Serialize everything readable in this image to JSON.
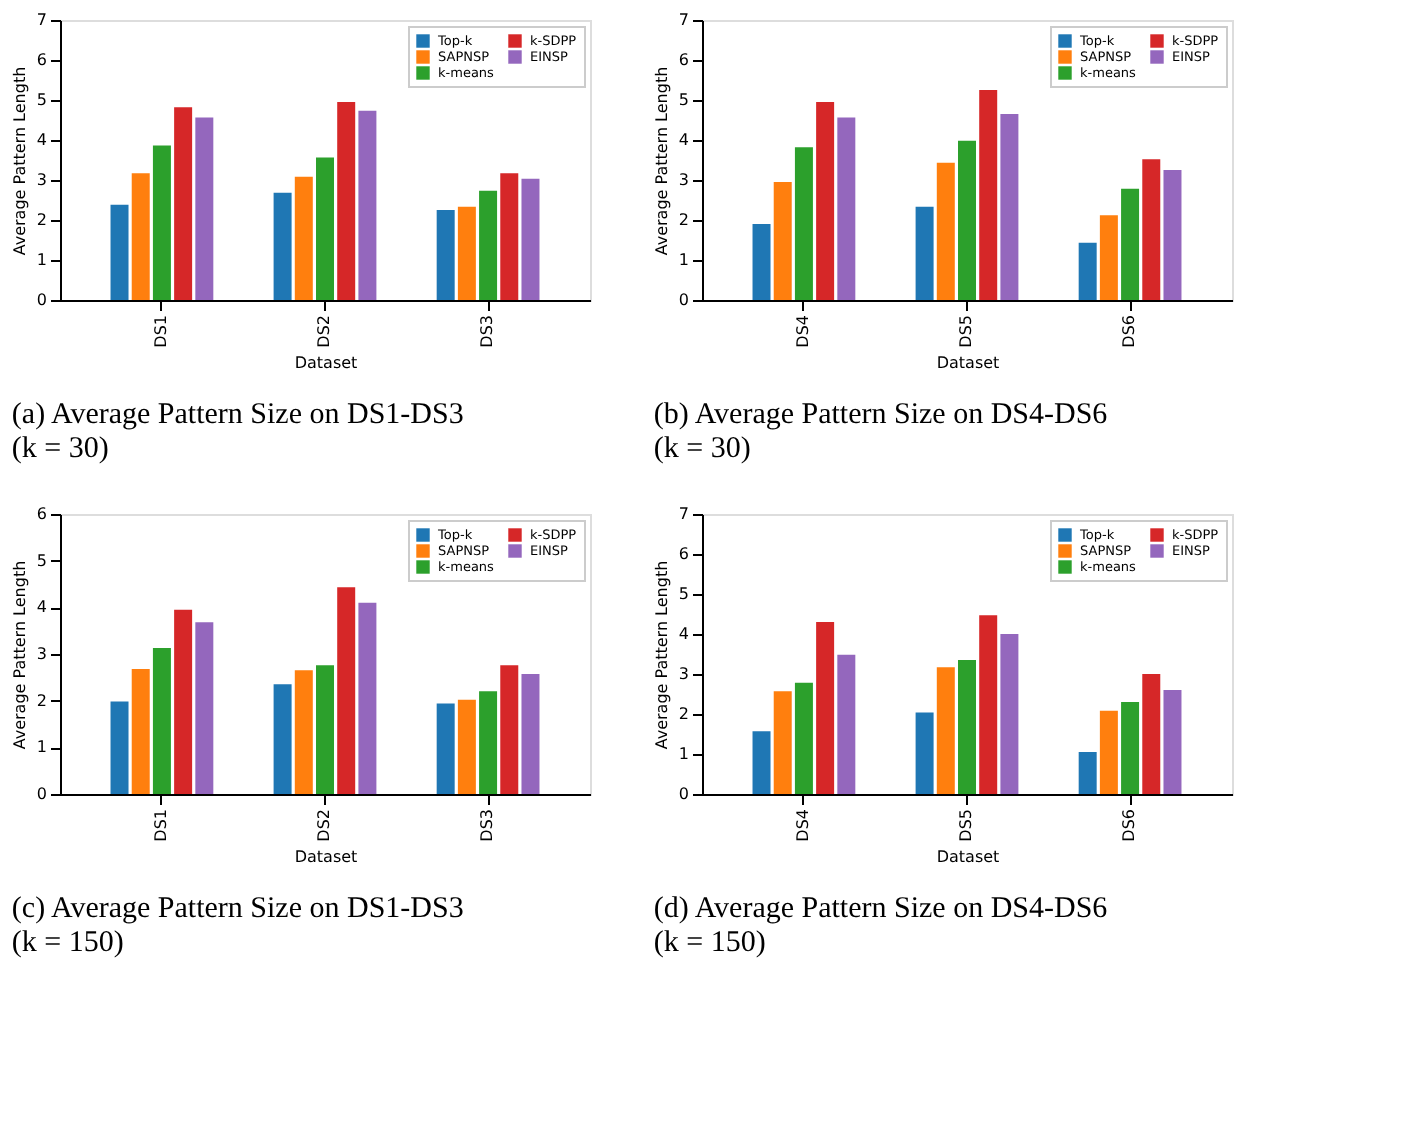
{
  "chart_data": [
    {
      "type": "bar",
      "title": "(a) Average Pattern Size on DS1-DS3 (k = 30)",
      "xlabel": "Dataset",
      "ylabel": "Average Pattern Length",
      "categories": [
        "DS1",
        "DS2",
        "DS3"
      ],
      "ylim": [
        0,
        7
      ],
      "yticks": [
        0,
        1,
        2,
        3,
        4,
        5,
        6,
        7
      ],
      "grid": false,
      "legend": "top right",
      "series": [
        {
          "name": "Top-k",
          "color": "#1f77b4",
          "values": [
            2.38,
            2.68,
            2.25
          ]
        },
        {
          "name": "SAPNSP",
          "color": "#ff7f0e",
          "values": [
            3.17,
            3.08,
            2.33
          ]
        },
        {
          "name": "k-means",
          "color": "#2ca02c",
          "values": [
            3.86,
            3.56,
            2.73
          ]
        },
        {
          "name": "k-SDPP",
          "color": "#d62728",
          "values": [
            4.82,
            4.95,
            3.17
          ]
        },
        {
          "name": "EINSP",
          "color": "#9467bd",
          "values": [
            4.56,
            4.73,
            3.03
          ]
        }
      ]
    },
    {
      "type": "bar",
      "title": "(b) Average Pattern Size on DS4-DS6 (k = 30)",
      "xlabel": "Dataset",
      "ylabel": "Average Pattern Length",
      "categories": [
        "DS4",
        "DS5",
        "DS6"
      ],
      "ylim": [
        0,
        7
      ],
      "yticks": [
        0,
        1,
        2,
        3,
        4,
        5,
        6,
        7
      ],
      "grid": false,
      "legend": "top right",
      "series": [
        {
          "name": "Top-k",
          "color": "#1f77b4",
          "values": [
            1.9,
            2.33,
            1.43
          ]
        },
        {
          "name": "SAPNSP",
          "color": "#ff7f0e",
          "values": [
            2.95,
            3.43,
            2.12
          ]
        },
        {
          "name": "k-means",
          "color": "#2ca02c",
          "values": [
            3.82,
            3.98,
            2.78
          ]
        },
        {
          "name": "k-SDPP",
          "color": "#d62728",
          "values": [
            4.95,
            5.25,
            3.52
          ]
        },
        {
          "name": "EINSP",
          "color": "#9467bd",
          "values": [
            4.56,
            4.65,
            3.25
          ]
        }
      ]
    },
    {
      "type": "bar",
      "title": "(c) Average Pattern Size on DS1-DS3 (k = 150)",
      "xlabel": "Dataset",
      "ylabel": "Average Pattern Length",
      "categories": [
        "DS1",
        "DS2",
        "DS3"
      ],
      "ylim": [
        0,
        6
      ],
      "yticks": [
        0,
        1,
        2,
        3,
        4,
        5,
        6
      ],
      "grid": false,
      "legend": "top right",
      "series": [
        {
          "name": "Top-k",
          "color": "#1f77b4",
          "values": [
            1.98,
            2.35,
            1.94
          ]
        },
        {
          "name": "SAPNSP",
          "color": "#ff7f0e",
          "values": [
            2.68,
            2.65,
            2.02
          ]
        },
        {
          "name": "k-means",
          "color": "#2ca02c",
          "values": [
            3.13,
            2.76,
            2.2
          ]
        },
        {
          "name": "k-SDPP",
          "color": "#d62728",
          "values": [
            3.95,
            4.43,
            2.76
          ]
        },
        {
          "name": "EINSP",
          "color": "#9467bd",
          "values": [
            3.68,
            4.1,
            2.57
          ]
        }
      ]
    },
    {
      "type": "bar",
      "title": "(d) Average Pattern Size on DS4-DS6 (k = 150)",
      "xlabel": "Dataset",
      "ylabel": "Average Pattern Length",
      "categories": [
        "DS4",
        "DS5",
        "DS6"
      ],
      "ylim": [
        0,
        7
      ],
      "yticks": [
        0,
        1,
        2,
        3,
        4,
        5,
        6,
        7
      ],
      "grid": false,
      "legend": "top right",
      "series": [
        {
          "name": "Top-k",
          "color": "#1f77b4",
          "values": [
            1.57,
            2.04,
            1.05
          ]
        },
        {
          "name": "SAPNSP",
          "color": "#ff7f0e",
          "values": [
            2.57,
            3.17,
            2.08
          ]
        },
        {
          "name": "k-means",
          "color": "#2ca02c",
          "values": [
            2.78,
            3.35,
            2.3
          ]
        },
        {
          "name": "k-SDPP",
          "color": "#d62728",
          "values": [
            4.3,
            4.47,
            3.0
          ]
        },
        {
          "name": "EINSP",
          "color": "#9467bd",
          "values": [
            3.48,
            4.0,
            2.6
          ]
        }
      ]
    }
  ]
}
